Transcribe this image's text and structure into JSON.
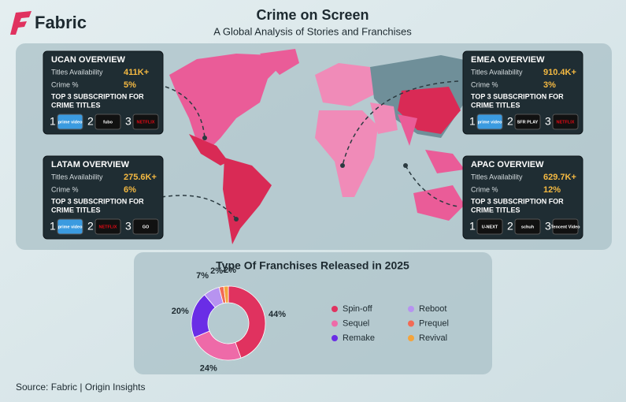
{
  "header": {
    "brand": "Fabric",
    "title": "Crime on Screen",
    "subtitle": "A Global Analysis of Stories and Franchises"
  },
  "regions": [
    {
      "title": "UCAN OVERVIEW",
      "availability_label": "Titles Availability",
      "availability": "411K+",
      "crime_label": "Crime %",
      "crime": "5%",
      "top3_label": [
        "TOP 3 SUBSCRIPTION FOR",
        "CRIME TITLES"
      ],
      "services": [
        {
          "rank": 1,
          "name": "prime video"
        },
        {
          "rank": 2,
          "name": "fubo"
        },
        {
          "rank": 3,
          "name": "NETFLIX"
        }
      ]
    },
    {
      "title": "EMEA OVERVIEW",
      "availability_label": "Titles Availability",
      "availability": "910.4K+",
      "crime_label": "Crime %",
      "crime": "3%",
      "top3_label": [
        "TOP 3 SUBSCRIPTION FOR",
        "CRIME TITLES"
      ],
      "services": [
        {
          "rank": 1,
          "name": "prime video"
        },
        {
          "rank": 2,
          "name": "SFR PLAY"
        },
        {
          "rank": 3,
          "name": "NETFLIX"
        }
      ]
    },
    {
      "title": "LATAM OVERVIEW",
      "availability_label": "Titles Availability",
      "availability": "275.6K+",
      "crime_label": "Crime %",
      "crime": "6%",
      "top3_label": [
        "TOP 3 SUBSCRIPTION FOR",
        "CRIME TITLES"
      ],
      "services": [
        {
          "rank": 1,
          "name": "prime video"
        },
        {
          "rank": 2,
          "name": "NETFLIX"
        },
        {
          "rank": 3,
          "name": "GO"
        }
      ]
    },
    {
      "title": "APAC OVERVIEW",
      "availability_label": "Titles Availability",
      "availability": "629.7K+",
      "crime_label": "Crime %",
      "crime": "12%",
      "top3_label": [
        "TOP 3 SUBSCRIPTION FOR",
        "CRIME TITLES"
      ],
      "services": [
        {
          "rank": 1,
          "name": "U-NEXT"
        },
        {
          "rank": 2,
          "name": "schuh"
        },
        {
          "rank": 3,
          "name": "Tencent Video"
        }
      ]
    }
  ],
  "chart_data": {
    "type": "donut",
    "title": "Type Of Franchises Released in 2025",
    "categories": [
      "Spin-off",
      "Sequel",
      "Remake",
      "Reboot",
      "Prequel",
      "Revival"
    ],
    "values": [
      44,
      24,
      20,
      7,
      2,
      2
    ],
    "value_labels": [
      "44%",
      "24%",
      "20%",
      "7%",
      "2%",
      "2%"
    ],
    "colors": [
      "#e0325f",
      "#ee6aa8",
      "#6a2de6",
      "#b793f0",
      "#f26a55",
      "#f4a43c"
    ]
  },
  "source": "Source: Fabric | Origin Insights"
}
